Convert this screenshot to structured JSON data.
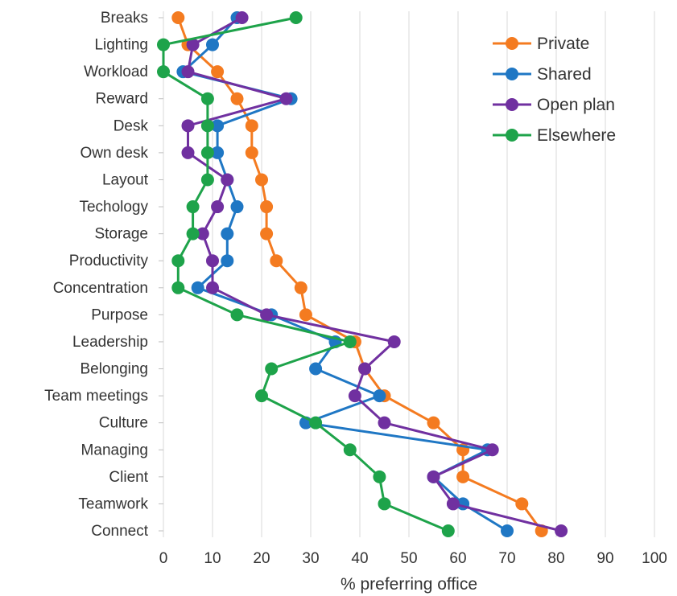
{
  "chart_data": {
    "type": "line",
    "orientation": "horizontal",
    "title": "",
    "xlabel": "% preferring office",
    "ylabel": "",
    "xlim": [
      0,
      100
    ],
    "xticks": [
      0,
      10,
      20,
      30,
      40,
      50,
      60,
      70,
      80,
      90,
      100
    ],
    "grid": true,
    "legend_position": "top-right",
    "categories": [
      "Breaks",
      "Lighting",
      "Workload",
      "Reward",
      "Desk",
      "Own desk",
      "Layout",
      "Techology",
      "Storage",
      "Productivity",
      "Concentration",
      "Purpose",
      "Leadership",
      "Belonging",
      "Team meetings",
      "Culture",
      "Managing",
      "Client",
      "Teamwork",
      "Connect"
    ],
    "series": [
      {
        "name": "Private",
        "color": "#f47b20",
        "values": [
          3,
          5,
          11,
          15,
          18,
          18,
          20,
          21,
          21,
          23,
          28,
          29,
          39,
          41,
          45,
          55,
          61,
          61,
          73,
          77
        ]
      },
      {
        "name": "Shared",
        "color": "#1f77c4",
        "values": [
          15,
          10,
          4,
          26,
          11,
          11,
          13,
          15,
          13,
          13,
          7,
          22,
          35,
          31,
          44,
          29,
          66,
          55,
          61,
          70
        ]
      },
      {
        "name": "Open plan",
        "color": "#7030a0",
        "values": [
          16,
          6,
          5,
          25,
          5,
          5,
          13,
          11,
          8,
          10,
          10,
          21,
          47,
          41,
          39,
          45,
          67,
          55,
          59,
          81
        ]
      },
      {
        "name": "Elsewhere",
        "color": "#1ea34a",
        "values": [
          27,
          0,
          0,
          9,
          9,
          9,
          9,
          6,
          6,
          3,
          3,
          15,
          38,
          22,
          20,
          31,
          38,
          44,
          45,
          58
        ]
      }
    ]
  }
}
